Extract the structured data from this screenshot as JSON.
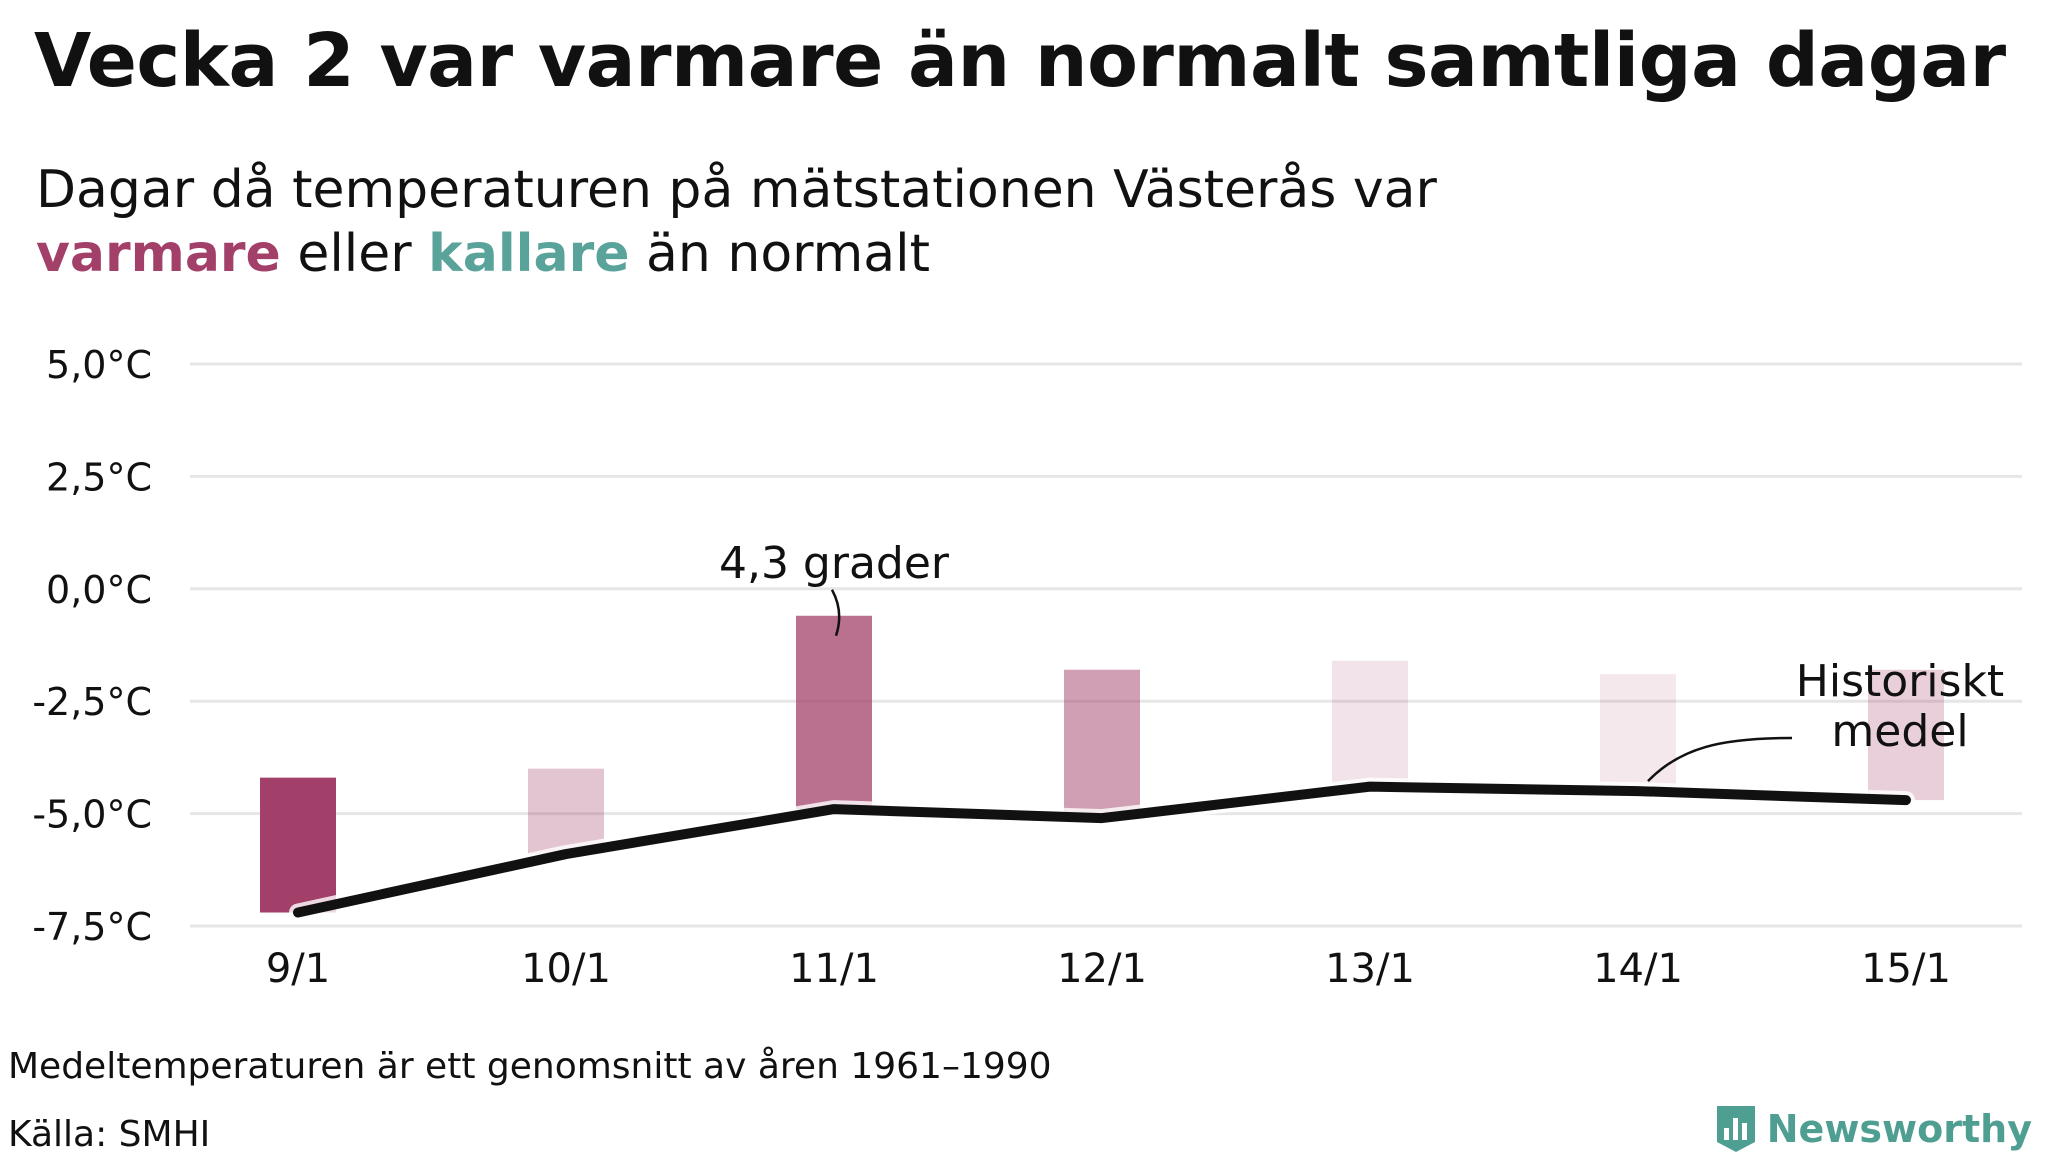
{
  "title": "Vecka 2 var varmare än normalt samtliga dagar",
  "subtitle": {
    "line1": "Dagar då temperaturen på mätstationen Västerås var",
    "warm_word": "varmare",
    "middle": " eller ",
    "cold_word": "kallare",
    "end": " än normalt"
  },
  "colors": {
    "warm": "#a3406a",
    "cold": "#5aa39b",
    "line": "#111111",
    "grid": "#e6e6e6",
    "brand": "#4f9e92"
  },
  "chart_data": {
    "type": "bar",
    "categories": [
      "9/1",
      "10/1",
      "11/1",
      "12/1",
      "13/1",
      "14/1",
      "15/1"
    ],
    "series": [
      {
        "values": [
          3.0,
          1.9,
          4.3,
          3.3,
          2.8,
          2.6,
          2.9
        ]
      },
      {
        "name": "Historiskt medel",
        "values": [
          -7.2,
          -5.9,
          -4.9,
          -5.1,
          -4.4,
          -4.5,
          -4.7
        ]
      }
    ],
    "bar_opacity": [
      1.0,
      0.3,
      0.75,
      0.5,
      0.15,
      0.12,
      0.25
    ],
    "ylim": [
      -7.5,
      5.0
    ],
    "yticks": [
      5.0,
      2.5,
      0.0,
      -2.5,
      -5.0,
      -7.5
    ],
    "ytick_labels": [
      "5,0°C",
      "2,5°C",
      "0,0°C",
      "-2,5°C",
      "-5,0°C",
      "-7,5°C"
    ],
    "grid": true,
    "annotations": [
      {
        "text": "4,3 grader",
        "category": "11/1",
        "value": 4.3
      },
      {
        "text": "Historiskt",
        "text2": "medel",
        "category": "14/1",
        "series": "Historiskt medel"
      }
    ]
  },
  "footer": {
    "note": "Medeltemperaturen är ett genomsnitt av åren 1961–1990",
    "source": "Källa: SMHI",
    "brand": "Newsworthy"
  }
}
